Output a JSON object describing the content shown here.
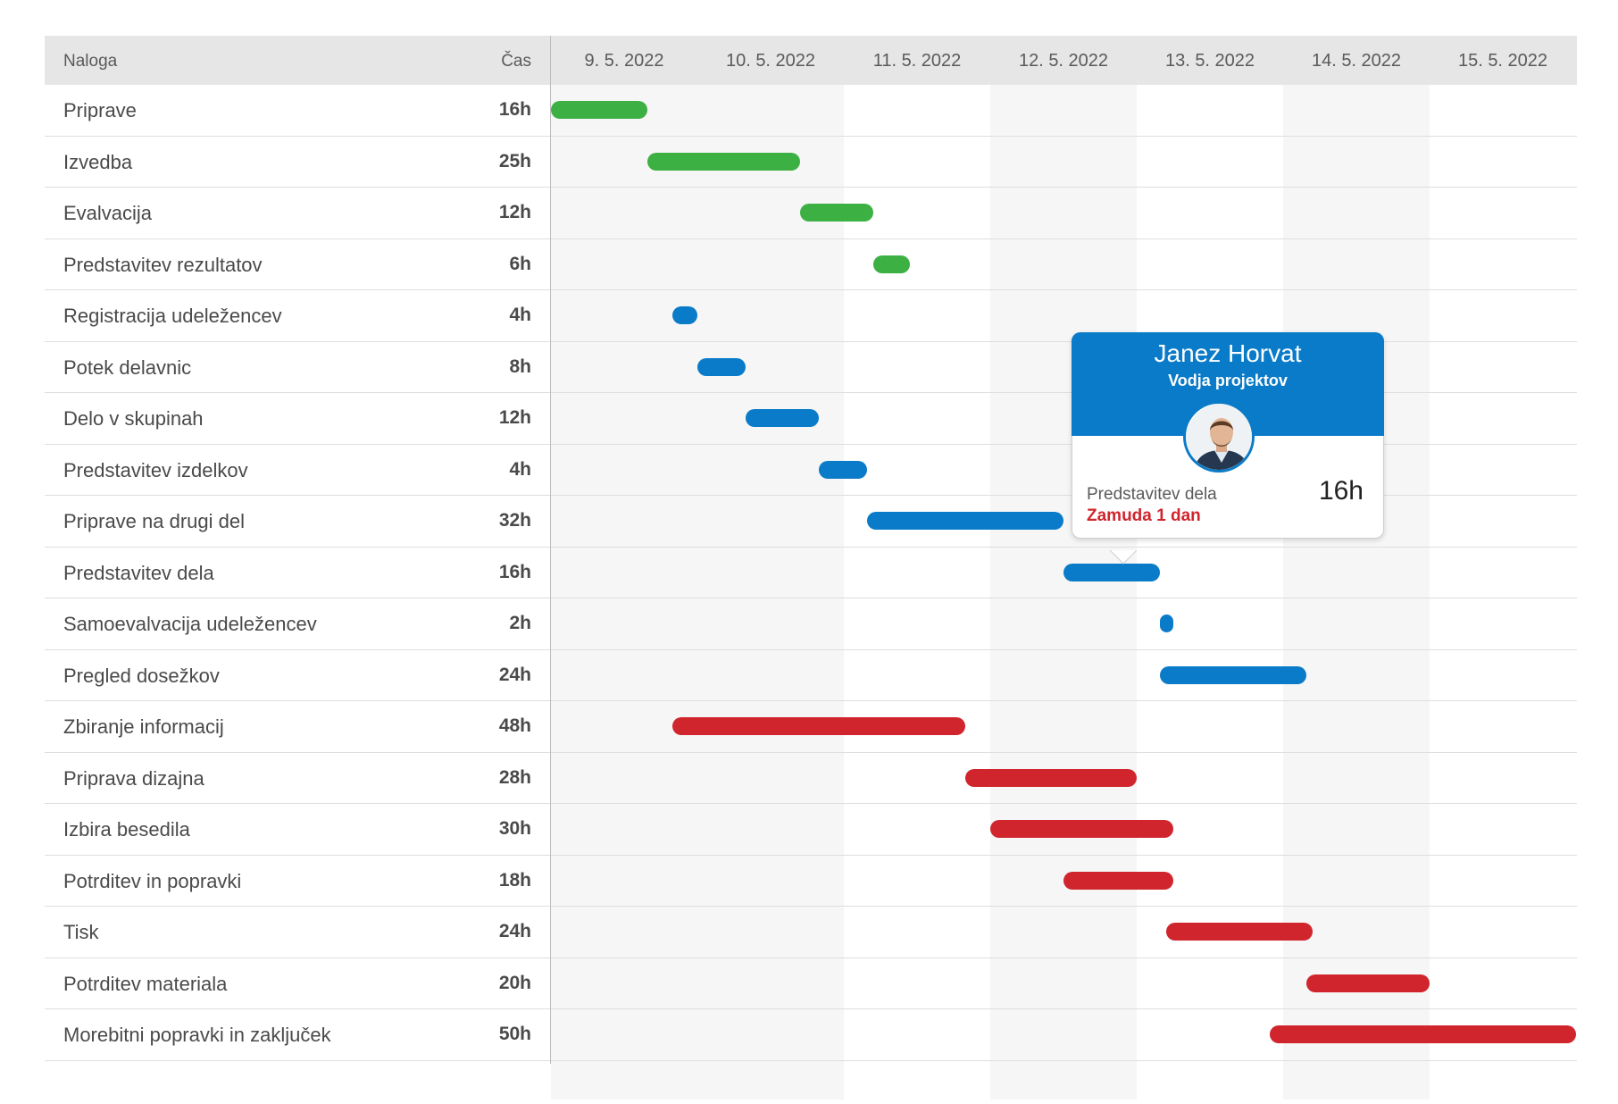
{
  "header": {
    "task_label": "Naloga",
    "time_label": "Čas",
    "dates": [
      "9. 5. 2022",
      "10. 5. 2022",
      "11. 5. 2022",
      "12. 5. 2022",
      "13. 5. 2022",
      "14. 5. 2022",
      "15. 5. 2022"
    ]
  },
  "colors": {
    "green": "#3cb043",
    "blue": "#0a7bc8",
    "red": "#d0252d"
  },
  "tasks": [
    {
      "name": "Priprave",
      "time": "16h",
      "color": "green",
      "start_day": 0.0,
      "end_day": 0.66
    },
    {
      "name": "Izvedba",
      "time": "25h",
      "color": "green",
      "start_day": 0.66,
      "end_day": 1.7
    },
    {
      "name": "Evalvacija",
      "time": "12h",
      "color": "green",
      "start_day": 1.7,
      "end_day": 2.2
    },
    {
      "name": "Predstavitev rezultatov",
      "time": "6h",
      "color": "green",
      "start_day": 2.2,
      "end_day": 2.45
    },
    {
      "name": "Registracija udeležencev",
      "time": "4h",
      "color": "blue",
      "start_day": 0.83,
      "end_day": 1.0
    },
    {
      "name": "Potek delavnic",
      "time": "8h",
      "color": "blue",
      "start_day": 1.0,
      "end_day": 1.33
    },
    {
      "name": "Delo v skupinah",
      "time": "12h",
      "color": "blue",
      "start_day": 1.33,
      "end_day": 1.83
    },
    {
      "name": "Predstavitev izdelkov",
      "time": "4h",
      "color": "blue",
      "start_day": 1.83,
      "end_day": 2.16
    },
    {
      "name": "Priprave na drugi del",
      "time": "32h",
      "color": "blue",
      "start_day": 2.16,
      "end_day": 3.5
    },
    {
      "name": "Predstavitev dela",
      "time": "16h",
      "color": "blue",
      "start_day": 3.5,
      "end_day": 4.16
    },
    {
      "name": "Samoevalvacija udeležencev",
      "time": "2h",
      "color": "blue",
      "start_day": 4.16,
      "end_day": 4.25
    },
    {
      "name": "Pregled dosežkov",
      "time": "24h",
      "color": "blue",
      "start_day": 4.16,
      "end_day": 5.16
    },
    {
      "name": "Zbiranje informacij",
      "time": "48h",
      "color": "red",
      "start_day": 0.83,
      "end_day": 2.83
    },
    {
      "name": "Priprava dizajna",
      "time": "28h",
      "color": "red",
      "start_day": 2.83,
      "end_day": 4.0
    },
    {
      "name": "Izbira besedila",
      "time": "30h",
      "color": "red",
      "start_day": 3.0,
      "end_day": 4.25
    },
    {
      "name": "Potrditev in popravki",
      "time": "18h",
      "color": "red",
      "start_day": 3.5,
      "end_day": 4.25
    },
    {
      "name": "Tisk",
      "time": "24h",
      "color": "red",
      "start_day": 4.2,
      "end_day": 5.2
    },
    {
      "name": "Potrditev materiala",
      "time": "20h",
      "color": "red",
      "start_day": 5.16,
      "end_day": 6.0
    },
    {
      "name": "Morebitni popravki in zaključek",
      "time": "50h",
      "color": "red",
      "start_day": 4.91,
      "end_day": 7.0
    }
  ],
  "tooltip": {
    "name": "Janez Horvat",
    "role": "Vodja projektov",
    "task": "Predstavitev dela",
    "delay": "Zamuda 1 dan",
    "hours": "16h"
  }
}
